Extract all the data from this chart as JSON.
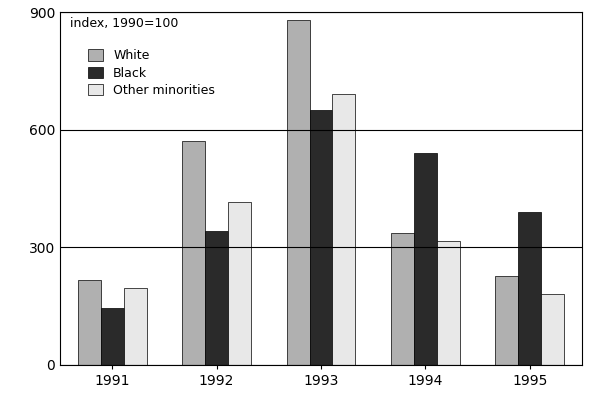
{
  "years": [
    "1991",
    "1992",
    "1993",
    "1994",
    "1995"
  ],
  "white": [
    215,
    570,
    880,
    335,
    225
  ],
  "black": [
    145,
    340,
    650,
    540,
    390
  ],
  "other": [
    195,
    415,
    690,
    315,
    180
  ],
  "colors": {
    "white": "#b0b0b0",
    "black": "#2a2a2a",
    "other": "#e8e8e8"
  },
  "legend_labels": [
    "White",
    "Black",
    "Other minorities"
  ],
  "ylabel": "index, 1990=100",
  "ylim": [
    0,
    900
  ],
  "yticks": [
    0,
    300,
    600,
    900
  ],
  "bar_width": 0.22,
  "figsize": [
    6.0,
    4.05
  ],
  "dpi": 100
}
